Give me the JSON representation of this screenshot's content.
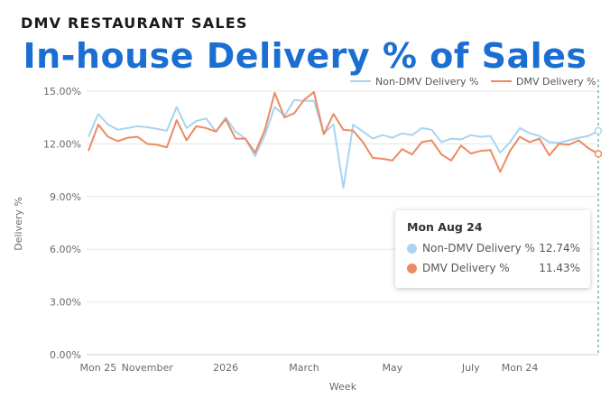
{
  "kicker": "DMV RESTAURANT SALES",
  "headline": "In-house Delivery % of Sales",
  "tooltip": {
    "title": "Mon Aug 24",
    "rows": [
      {
        "label": "Non-DMV Delivery %",
        "value": "12.74%"
      },
      {
        "label": "DMV Delivery %",
        "value": "11.43%"
      }
    ]
  },
  "chart_data": {
    "type": "line",
    "xlabel": "Week",
    "ylabel": "Delivery %",
    "ylim": [
      0,
      15
    ],
    "yticks": [
      "0.00%",
      "3.00%",
      "6.00%",
      "9.00%",
      "12.00%",
      "15.00%"
    ],
    "xticks": [
      {
        "label": "Mon 25",
        "week": 1
      },
      {
        "label": "November",
        "week": 6
      },
      {
        "label": "2026",
        "week": 14
      },
      {
        "label": "March",
        "week": 22
      },
      {
        "label": "May",
        "week": 31
      },
      {
        "label": "July",
        "week": 39
      },
      {
        "label": "Mon 24",
        "week": 44
      }
    ],
    "grid": true,
    "legend_position": "top-right",
    "series": [
      {
        "name": "Non-DMV Delivery %",
        "color": "#a9d3f2",
        "values": [
          12.4,
          13.7,
          13.1,
          12.8,
          12.9,
          13.0,
          12.95,
          12.85,
          12.75,
          14.1,
          12.9,
          13.3,
          13.45,
          12.7,
          13.5,
          12.7,
          12.3,
          11.3,
          12.5,
          14.1,
          13.6,
          14.5,
          14.45,
          14.45,
          12.6,
          13.1,
          9.5,
          13.1,
          12.7,
          12.3,
          12.5,
          12.35,
          12.6,
          12.5,
          12.9,
          12.8,
          12.1,
          12.3,
          12.25,
          12.5,
          12.4,
          12.45,
          11.5,
          12.1,
          12.9,
          12.6,
          12.45,
          12.1,
          12.05,
          12.2,
          12.35,
          12.45,
          12.74
        ],
        "last_marker": true
      },
      {
        "name": "DMV Delivery %",
        "color": "#ec8a63",
        "values": [
          11.6,
          13.1,
          12.4,
          12.15,
          12.35,
          12.4,
          12.0,
          11.95,
          11.8,
          13.35,
          12.2,
          13.0,
          12.9,
          12.7,
          13.4,
          12.3,
          12.3,
          11.5,
          12.8,
          14.9,
          13.5,
          13.75,
          14.5,
          14.95,
          12.55,
          13.7,
          12.8,
          12.75,
          12.1,
          11.2,
          11.15,
          11.05,
          11.7,
          11.4,
          12.1,
          12.2,
          11.4,
          11.05,
          11.9,
          11.45,
          11.6,
          11.65,
          10.4,
          11.6,
          12.4,
          12.1,
          12.3,
          11.35,
          12.0,
          11.95,
          12.2,
          11.75,
          11.43
        ],
        "last_marker": true
      }
    ]
  }
}
